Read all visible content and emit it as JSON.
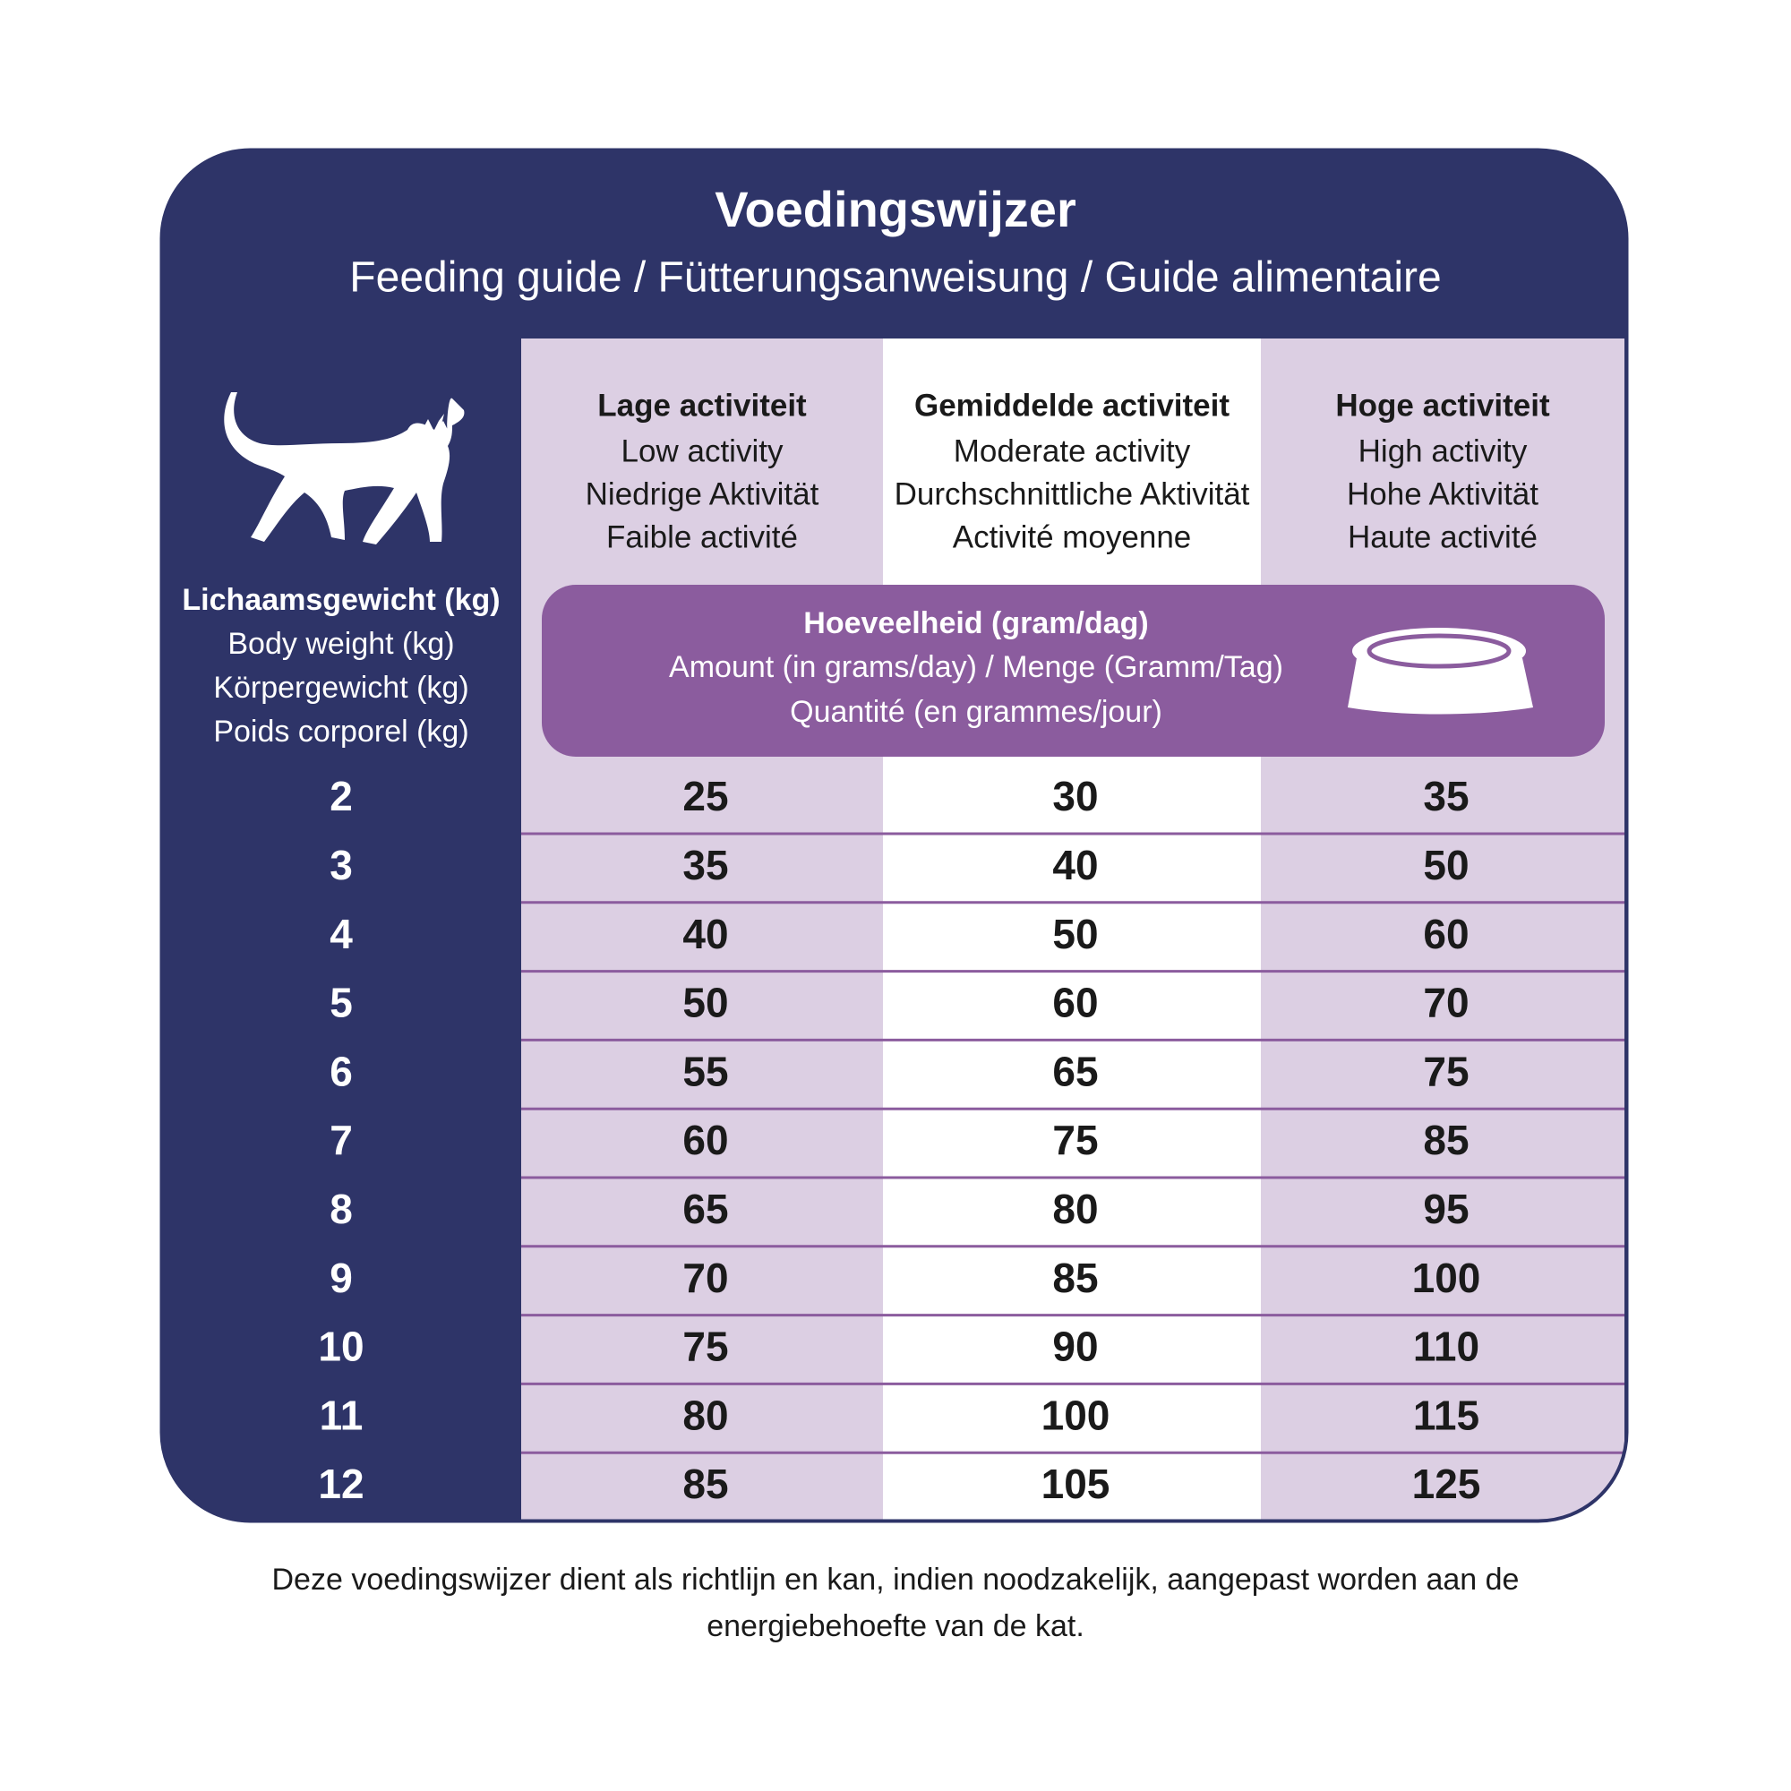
{
  "header": {
    "title": "Voedingswijzer",
    "subtitle": "Feeding guide / Fütterungsanweisung / Guide alimentaire"
  },
  "weight_header": [
    "Lichaamsgewicht (kg)",
    "Body weight (kg)",
    "Körpergewicht (kg)",
    "Poids corporel (kg)"
  ],
  "columns": [
    {
      "title": "Lage activiteit",
      "lines": [
        "Low activity",
        "Niedrige Aktivität",
        "Faible activité"
      ]
    },
    {
      "title": "Gemiddelde activiteit",
      "lines": [
        "Moderate activity",
        "Durchschnittliche Aktivität",
        "Activité moyenne"
      ]
    },
    {
      "title": "Hoge activiteit",
      "lines": [
        "High activity",
        "Hohe Aktivität",
        "Haute activité"
      ]
    }
  ],
  "amount": {
    "title": "Hoeveelheid (gram/dag)",
    "lines": [
      "Amount (in grams/day) / Menge (Gramm/Tag)",
      "Quantité (en grammes/jour)"
    ]
  },
  "table": {
    "rows": [
      [
        2,
        25,
        30,
        35
      ],
      [
        3,
        35,
        40,
        50
      ],
      [
        4,
        40,
        50,
        60
      ],
      [
        5,
        50,
        60,
        70
      ],
      [
        6,
        55,
        65,
        75
      ],
      [
        7,
        60,
        75,
        85
      ],
      [
        8,
        65,
        80,
        95
      ],
      [
        9,
        70,
        85,
        100
      ],
      [
        10,
        75,
        90,
        110
      ],
      [
        11,
        80,
        100,
        115
      ],
      [
        12,
        85,
        105,
        125
      ]
    ]
  },
  "footer": "Deze voedingswijzer dient als richtlijn en kan, indien noodzakelijk, aangepast worden aan de energiebehoefte van de kat."
}
